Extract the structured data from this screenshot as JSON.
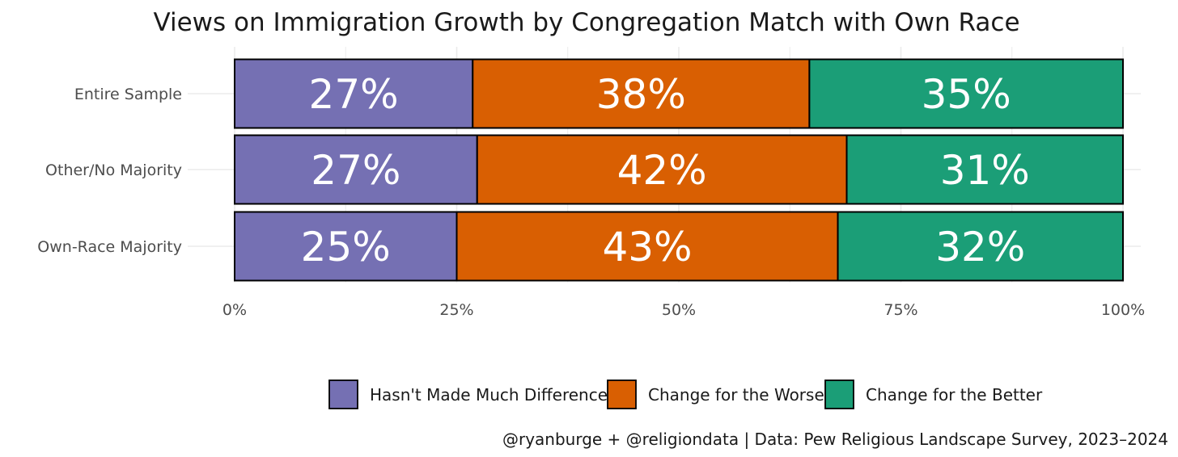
{
  "colors": {
    "series": [
      "#7570b3",
      "#d95f02",
      "#1b9e77"
    ],
    "grid": "#ebebeb",
    "outline": "#000000"
  },
  "caption": "@ryanburge + @religiondata | Data: Pew Religious Landscape Survey, 2023–2024",
  "chart_data": {
    "type": "bar",
    "orientation": "horizontal",
    "stacked": true,
    "title": "Views on Immigration Growth by Congregation Match with Own Race",
    "xlabel": "",
    "ylabel": "",
    "categories": [
      "Entire Sample",
      "Other/No Majority",
      "Own-Race Majority"
    ],
    "series": [
      {
        "name": "Hasn't Made Much Difference",
        "values": [
          27,
          27,
          25
        ]
      },
      {
        "name": "Change for the Worse",
        "values": [
          38,
          42,
          43
        ]
      },
      {
        "name": "Change for the Better",
        "values": [
          35,
          31,
          32
        ]
      }
    ],
    "bar_values": [
      [
        26.8,
        37.9,
        35.3
      ],
      [
        27.3,
        41.6,
        31.1
      ],
      [
        25.0,
        42.9,
        32.1
      ]
    ],
    "data_labels": [
      [
        "27%",
        "38%",
        "35%"
      ],
      [
        "27%",
        "42%",
        "31%"
      ],
      [
        "25%",
        "43%",
        "32%"
      ]
    ],
    "xlim": [
      0,
      100
    ],
    "x_ticks": [
      0,
      25,
      50,
      75,
      100
    ],
    "x_tick_labels": [
      "0%",
      "25%",
      "50%",
      "75%",
      "100%"
    ],
    "grid": true,
    "legend": "bottom"
  }
}
